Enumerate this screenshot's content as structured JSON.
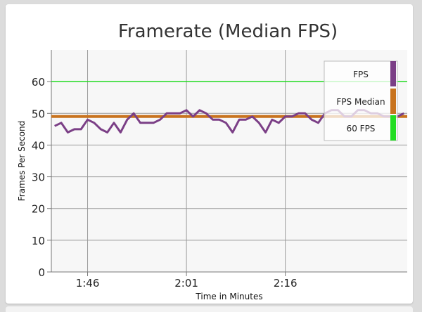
{
  "chart_data": {
    "type": "line",
    "title": "Framerate (Median FPS)",
    "xlabel": "Time in Minutes",
    "ylabel": "Frames Per Second",
    "ylim": [
      0,
      70
    ],
    "yticks": [
      0,
      10,
      20,
      30,
      40,
      50,
      60
    ],
    "xticks": [
      {
        "label": "1:46",
        "value": 10
      },
      {
        "label": "2:01",
        "value": 25
      },
      {
        "label": "2:16",
        "value": 40
      }
    ],
    "xlim": [
      4.5,
      58.5
    ],
    "grid": true,
    "legend_position": "top-right",
    "series": [
      {
        "name": "FPS",
        "color": "#7b3f86",
        "x": [
          5,
          6,
          7,
          8,
          9,
          10,
          11,
          12,
          13,
          14,
          15,
          16,
          17,
          18,
          19,
          20,
          21,
          22,
          23,
          24,
          25,
          26,
          27,
          28,
          29,
          30,
          31,
          32,
          33,
          34,
          35,
          36,
          37,
          38,
          39,
          40,
          41,
          42,
          43,
          44,
          45,
          46,
          47,
          48,
          49,
          50,
          51,
          52,
          53,
          54,
          55,
          56,
          57,
          58
        ],
        "y": [
          46,
          47,
          44,
          45,
          45,
          48,
          47,
          45,
          44,
          47,
          44,
          48,
          50,
          47,
          47,
          47,
          48,
          50,
          50,
          50,
          51,
          49,
          51,
          50,
          48,
          48,
          47,
          44,
          48,
          48,
          49,
          47,
          44,
          48,
          47,
          49,
          49,
          50,
          50,
          48,
          47,
          50,
          51,
          51,
          49,
          49,
          51,
          51,
          50,
          50,
          49,
          49,
          49,
          50
        ]
      },
      {
        "name": "FPS Median",
        "color": "#c8731e",
        "y_constant": 49
      },
      {
        "name": "60 FPS",
        "color": "#22dd22",
        "y_constant": 60
      }
    ]
  }
}
